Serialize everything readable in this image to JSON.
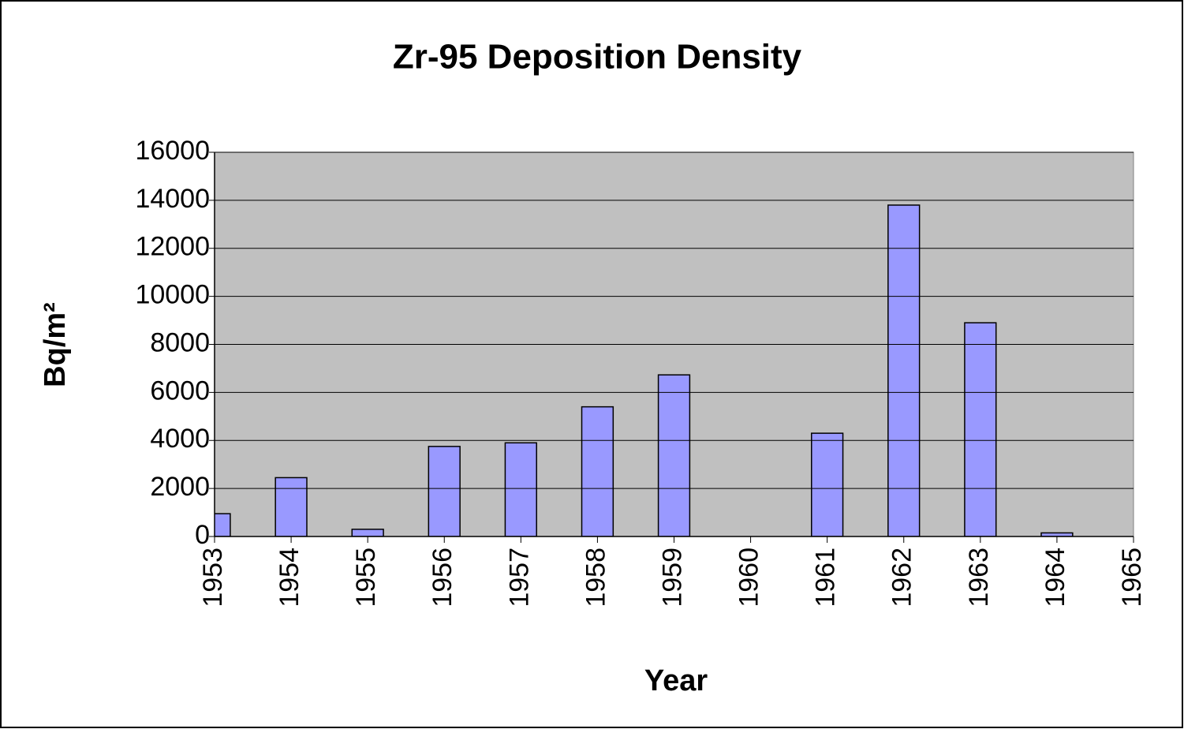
{
  "chart_data": {
    "type": "bar",
    "title": "Zr-95 Deposition Density",
    "x_label": "Year",
    "y_label": "Bq/m²",
    "x": [
      1953,
      1954,
      1955,
      1956,
      1957,
      1958,
      1959,
      1960,
      1961,
      1962,
      1963,
      1964
    ],
    "values": [
      950,
      2450,
      300,
      3750,
      3900,
      5400,
      6730,
      null,
      4300,
      13800,
      8900,
      150
    ],
    "color": "#9999ff",
    "xlim": [
      1953,
      1965
    ],
    "xticks": [
      1953,
      1954,
      1955,
      1956,
      1957,
      1958,
      1959,
      1960,
      1961,
      1962,
      1963,
      1964,
      1965
    ],
    "ylim": [
      0,
      16000
    ],
    "yticks": [
      0,
      2000,
      4000,
      6000,
      8000,
      10000,
      12000,
      14000,
      16000
    ],
    "grid": true
  }
}
